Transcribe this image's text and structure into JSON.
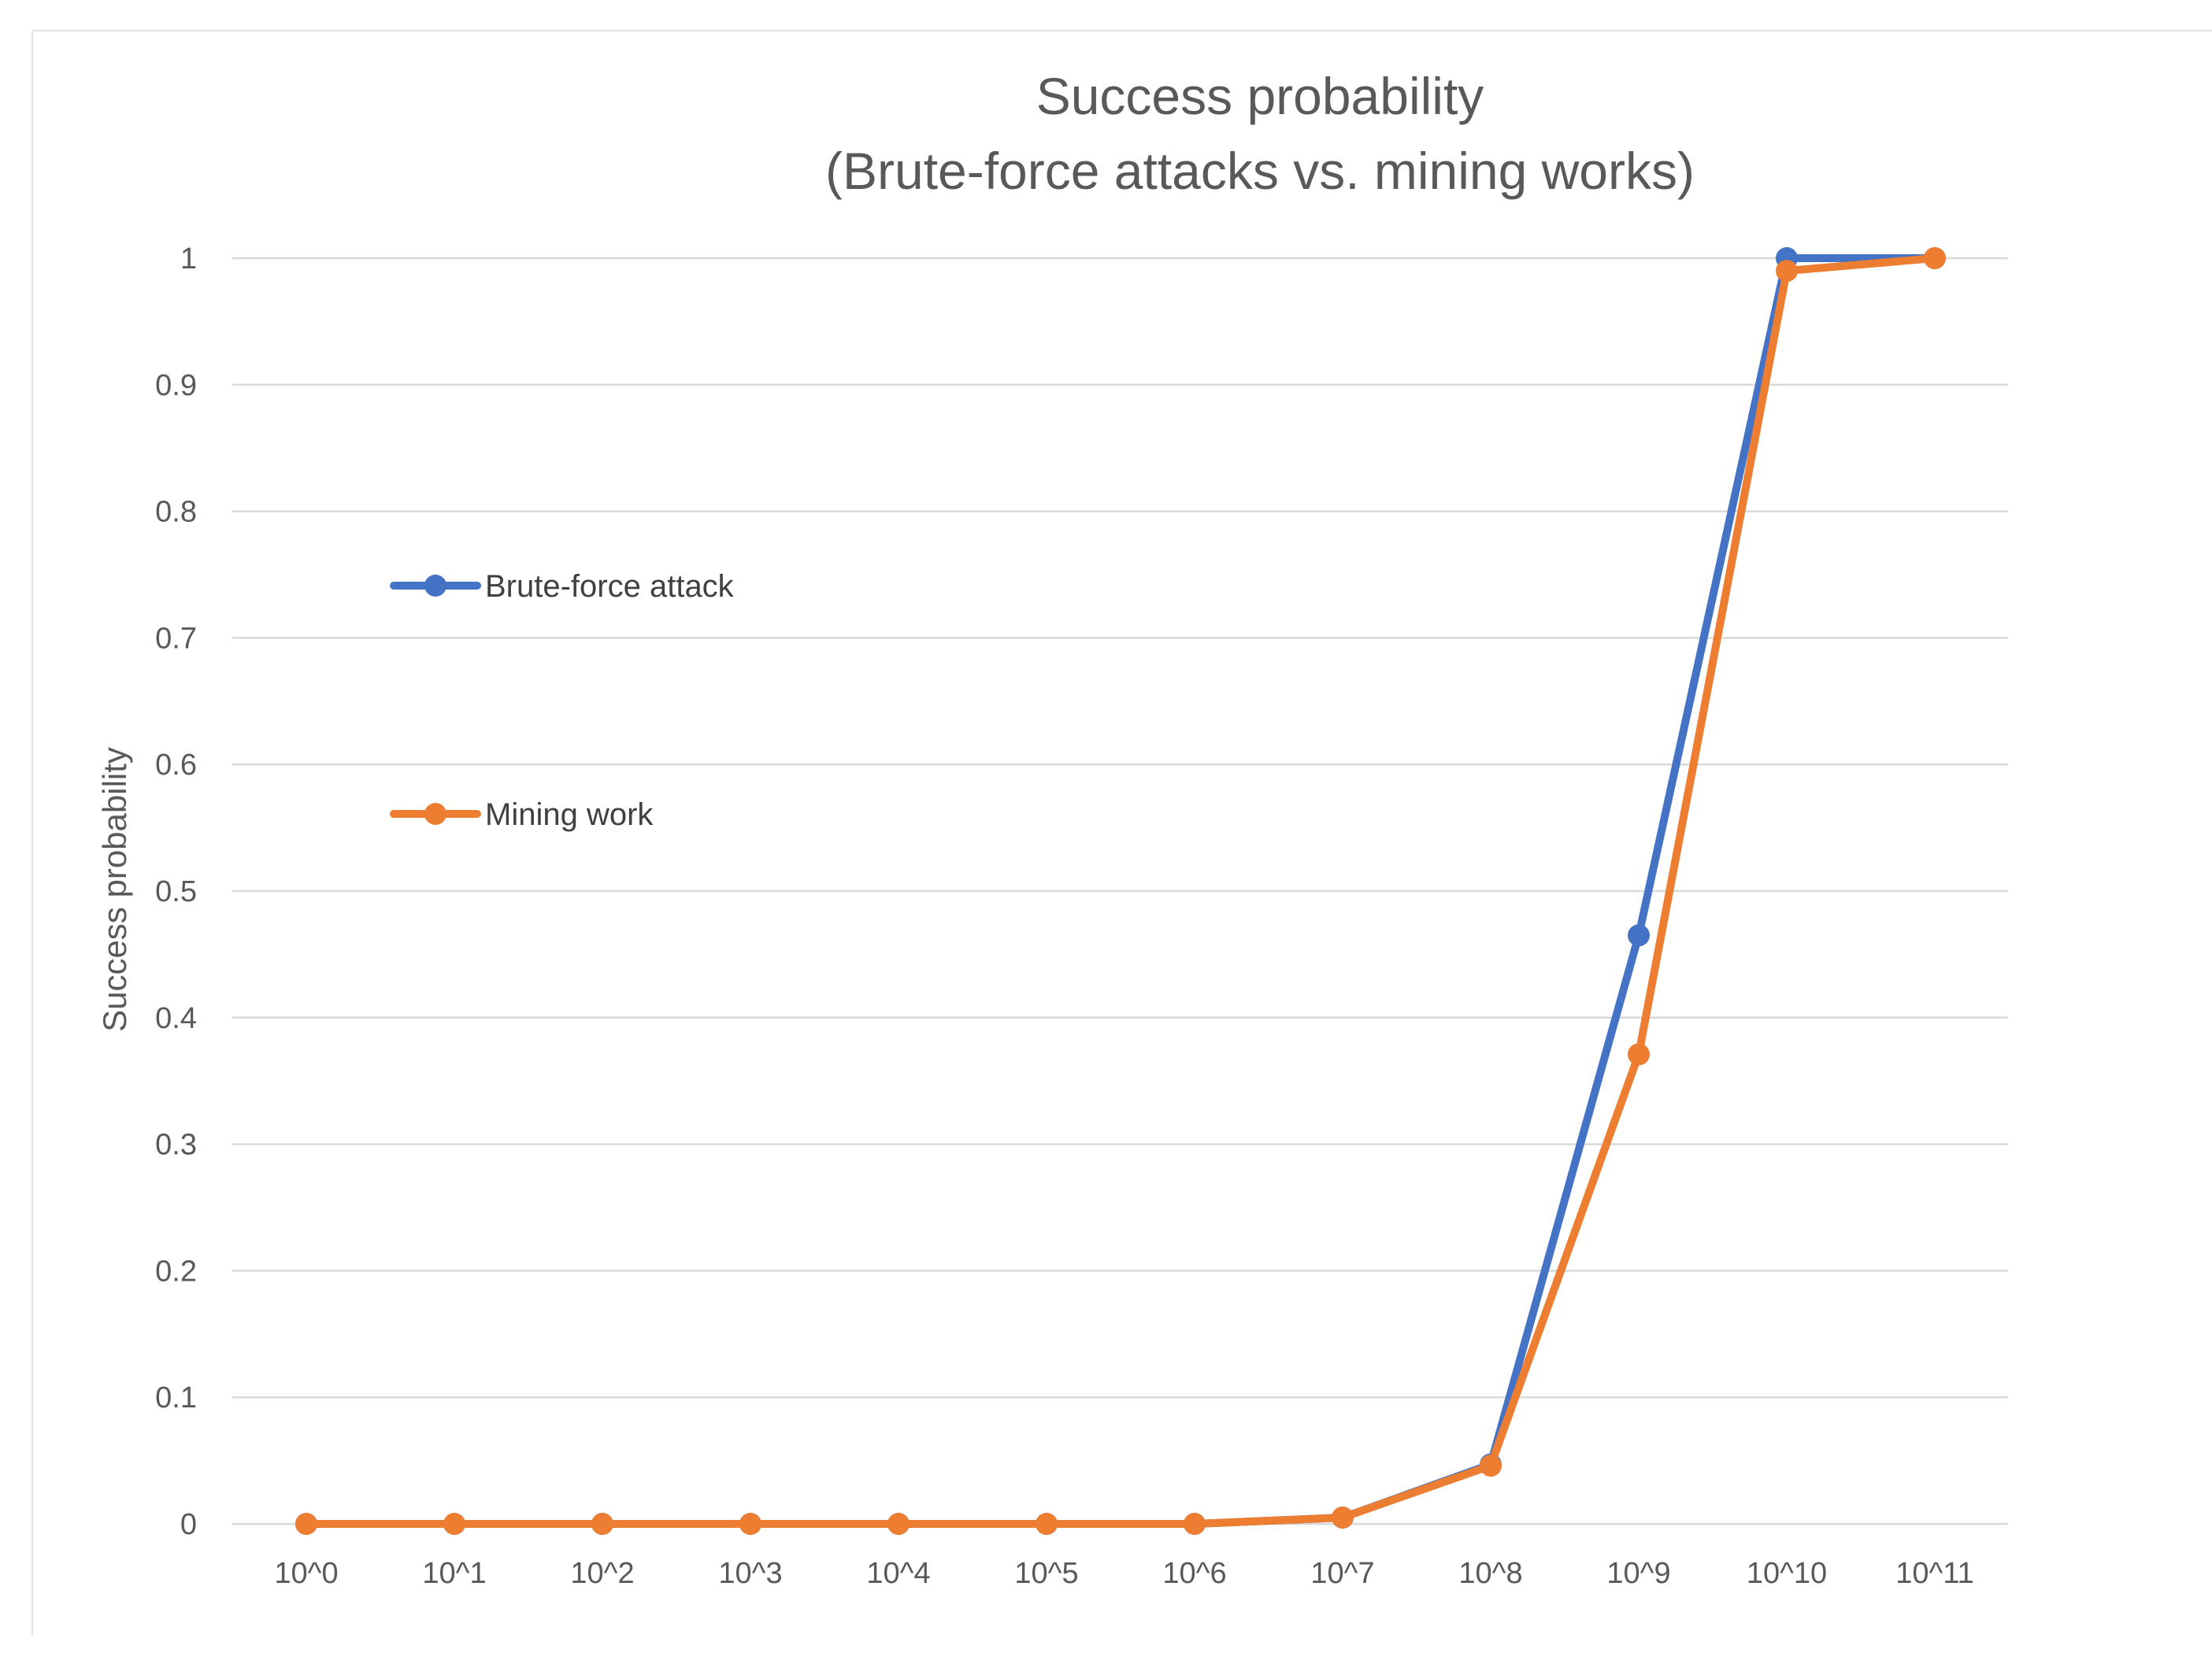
{
  "chart_data": {
    "type": "line",
    "title_line1": "Success probability",
    "title_line2": "(Brute-force attacks vs. mining works)",
    "ylabel": "Success probability",
    "xlabel": "",
    "ylim": [
      0,
      1
    ],
    "yticks": [
      "0",
      "0.1",
      "0.2",
      "0.3",
      "0.4",
      "0.5",
      "0.6",
      "0.7",
      "0.8",
      "0.9",
      "1"
    ],
    "categories": [
      "10^0",
      "10^1",
      "10^2",
      "10^3",
      "10^4",
      "10^5",
      "10^6",
      "10^7",
      "10^8",
      "10^9",
      "10^10",
      "10^11"
    ],
    "grid": true,
    "legend_position": "left",
    "series": [
      {
        "name": "Brute-force attack",
        "color": "#4472C4",
        "values": [
          0,
          0,
          0,
          0,
          0,
          0,
          0,
          0.005,
          0.047,
          0.465,
          1.0,
          1.0
        ]
      },
      {
        "name": "Mining work",
        "color": "#ED7D31",
        "values": [
          0,
          0,
          0,
          0,
          0,
          0,
          0,
          0.005,
          0.046,
          0.371,
          0.99,
          1.0
        ]
      }
    ]
  }
}
